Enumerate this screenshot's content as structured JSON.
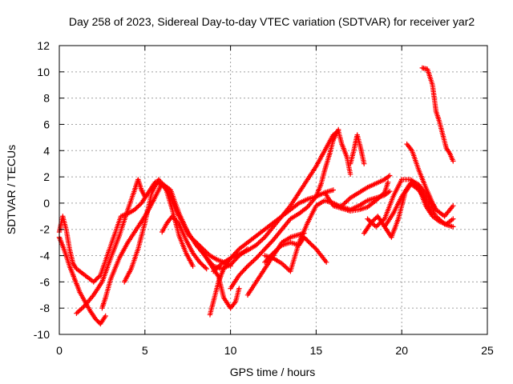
{
  "chart_data": {
    "type": "scatter",
    "title": "Day 258 of 2023, Sidereal Day-to-day VTEC variation (SDTVAR) for receiver yar2",
    "xlabel": "GPS time / hours",
    "ylabel": "SDTVAR / TECUs",
    "xlim": [
      0,
      25
    ],
    "ylim": [
      -10,
      12
    ],
    "xticks": [
      0,
      5,
      10,
      15,
      20,
      25
    ],
    "yticks": [
      -10,
      -8,
      -6,
      -4,
      -2,
      0,
      2,
      4,
      6,
      8,
      10,
      12
    ],
    "grid": true,
    "legend": "none",
    "marker": "+",
    "colors": {
      "series": "#ff0000",
      "grid": "#a0a0a0",
      "axis": "#000000"
    },
    "series": [
      {
        "name": "trace-1",
        "x": [
          0.0,
          0.2,
          0.4,
          0.6,
          0.8,
          1.0,
          1.3,
          1.6,
          2.0,
          2.4,
          2.8,
          3.2,
          3.6,
          4.0,
          4.4,
          4.8,
          5.2,
          5.6,
          6.0,
          6.4,
          6.8,
          7.2,
          7.6,
          8.0,
          8.4,
          8.8,
          9.2,
          9.6,
          10.0
        ],
        "y": [
          -2.2,
          -1.0,
          -2.0,
          -3.5,
          -4.6,
          -5.0,
          -5.3,
          -5.6,
          -6.0,
          -5.5,
          -4.0,
          -2.5,
          -1.0,
          -0.8,
          -0.5,
          0.0,
          0.8,
          1.6,
          1.4,
          0.8,
          -0.5,
          -1.5,
          -2.5,
          -3.0,
          -3.5,
          -4.0,
          -4.3,
          -4.5,
          -4.8
        ]
      },
      {
        "name": "trace-2",
        "x": [
          0.0,
          0.3,
          0.6,
          0.9,
          1.2,
          1.5,
          1.8,
          2.1,
          2.4,
          2.7
        ],
        "y": [
          -2.6,
          -3.6,
          -4.8,
          -5.8,
          -6.8,
          -7.5,
          -8.2,
          -8.8,
          -9.2,
          -8.6
        ]
      },
      {
        "name": "trace-3",
        "x": [
          1.0,
          1.5,
          2.0,
          2.5,
          3.0,
          3.5,
          4.0,
          4.4,
          4.6,
          4.8,
          5.0
        ],
        "y": [
          -8.4,
          -7.8,
          -7.0,
          -6.0,
          -4.2,
          -2.5,
          -0.5,
          1.0,
          1.8,
          1.0,
          0.5
        ]
      },
      {
        "name": "trace-4",
        "x": [
          2.5,
          2.7,
          3.0,
          3.5,
          4.0,
          4.5,
          5.0,
          5.5,
          6.0,
          6.5,
          7.0,
          7.5,
          8.0,
          8.5,
          9.0,
          9.5,
          10.0,
          10.5,
          11.0
        ],
        "y": [
          -8.0,
          -7.2,
          -5.8,
          -4.2,
          -3.0,
          -2.0,
          -1.0,
          0.2,
          1.5,
          1.0,
          -0.8,
          -2.2,
          -3.2,
          -4.0,
          -4.8,
          -5.0,
          -4.7,
          -4.0,
          -3.5
        ]
      },
      {
        "name": "trace-5",
        "x": [
          3.8,
          4.2,
          4.6,
          5.0,
          5.4,
          5.8,
          6.2,
          6.6,
          7.0,
          7.4,
          7.8
        ],
        "y": [
          -6.0,
          -5.0,
          -3.5,
          -1.5,
          0.8,
          1.8,
          1.2,
          -0.5,
          -2.5,
          -3.8,
          -4.8
        ]
      },
      {
        "name": "trace-6",
        "x": [
          6.0,
          6.3,
          6.6,
          7.0,
          7.4,
          7.8,
          8.2,
          8.6
        ],
        "y": [
          -2.2,
          -1.5,
          -1.0,
          -1.6,
          -2.8,
          -3.8,
          -4.5,
          -5.0
        ]
      },
      {
        "name": "trace-7",
        "x": [
          8.0,
          8.5,
          9.0,
          9.3,
          9.6,
          10.0,
          10.3,
          10.5
        ],
        "y": [
          -3.0,
          -4.0,
          -5.0,
          -5.6,
          -7.2,
          -8.0,
          -7.5,
          -6.5
        ]
      },
      {
        "name": "trace-8",
        "x": [
          8.8,
          9.0,
          9.3,
          9.6,
          10.0,
          10.5,
          11.0,
          11.5,
          12.0,
          12.5,
          13.0,
          13.5,
          14.0,
          14.5,
          15.0,
          15.5,
          16.0
        ],
        "y": [
          -8.5,
          -7.5,
          -6.0,
          -5.0,
          -4.2,
          -3.5,
          -3.0,
          -2.5,
          -2.0,
          -1.5,
          -1.0,
          -0.5,
          0.0,
          0.3,
          0.5,
          0.8,
          1.0
        ]
      },
      {
        "name": "trace-9",
        "x": [
          9.0,
          9.5,
          10.0,
          10.5,
          11.0,
          11.5,
          12.0,
          12.5,
          13.0,
          13.5,
          14.0,
          14.5,
          15.0,
          15.5,
          16.0,
          16.3,
          16.5,
          16.8,
          17.0
        ],
        "y": [
          -5.2,
          -4.6,
          -4.2,
          -3.9,
          -3.6,
          -3.2,
          -2.6,
          -1.8,
          -1.0,
          -0.2,
          0.8,
          1.8,
          2.8,
          4.0,
          5.2,
          5.5,
          4.5,
          3.5,
          2.2
        ]
      },
      {
        "name": "trace-10",
        "x": [
          10.0,
          10.5,
          11.0,
          11.5,
          12.0,
          12.5,
          13.0,
          13.5,
          14.0,
          14.5,
          15.0,
          15.3,
          15.5,
          15.8,
          16.0,
          16.3
        ],
        "y": [
          -6.5,
          -5.5,
          -4.8,
          -4.2,
          -3.5,
          -2.8,
          -2.0,
          -1.2,
          -0.8,
          -0.3,
          0.5,
          1.5,
          2.5,
          3.8,
          4.8,
          5.6
        ]
      },
      {
        "name": "trace-11",
        "x": [
          11.0,
          11.5,
          12.0,
          12.5,
          13.0,
          13.5,
          14.0,
          14.3
        ],
        "y": [
          -7.0,
          -6.0,
          -5.0,
          -4.0,
          -3.0,
          -2.6,
          -2.4,
          -2.3
        ]
      },
      {
        "name": "trace-12",
        "x": [
          12.0,
          12.5,
          13.0,
          13.5,
          14.0,
          14.3,
          14.6,
          15.0,
          15.3,
          15.6
        ],
        "y": [
          -4.5,
          -3.8,
          -3.2,
          -3.0,
          -3.2,
          -2.6,
          -3.0,
          -3.5,
          -4.0,
          -4.5
        ]
      },
      {
        "name": "trace-13",
        "x": [
          12.0,
          12.5,
          13.0,
          13.5,
          14.0,
          14.5,
          15.0,
          15.5,
          16.0,
          16.5,
          17.0,
          17.5,
          18.0,
          18.5,
          19.0,
          19.3
        ],
        "y": [
          -4.0,
          -4.2,
          -4.6,
          -5.2,
          -3.0,
          -1.5,
          -0.2,
          0.2,
          0.0,
          -0.3,
          -0.5,
          -0.2,
          0.2,
          0.4,
          0.6,
          0.9
        ]
      },
      {
        "name": "trace-14",
        "x": [
          15.5,
          16.0,
          16.5,
          17.0,
          17.5,
          18.0,
          18.5,
          19.0,
          19.2
        ],
        "y": [
          0.8,
          -0.2,
          -0.4,
          -0.6,
          -0.5,
          -0.3,
          0.2,
          0.8,
          1.6
        ]
      },
      {
        "name": "trace-15",
        "x": [
          17.0,
          17.2,
          17.4,
          17.6,
          17.8
        ],
        "y": [
          3.0,
          4.0,
          5.2,
          4.2,
          3.0
        ]
      },
      {
        "name": "trace-16",
        "x": [
          16.5,
          17.0,
          17.5,
          18.0,
          18.5,
          19.0,
          19.3
        ],
        "y": [
          -0.2,
          0.4,
          0.8,
          1.2,
          1.5,
          1.8,
          2.1
        ]
      },
      {
        "name": "trace-17",
        "x": [
          17.8,
          18.2,
          18.6,
          19.0,
          19.4,
          19.8,
          20.2,
          20.6,
          21.0,
          21.4,
          21.8,
          22.2,
          22.6,
          23.0
        ],
        "y": [
          -2.3,
          -1.5,
          -1.0,
          -1.8,
          -2.6,
          -1.2,
          0.8,
          1.6,
          1.2,
          -0.2,
          -1.0,
          -1.4,
          -1.6,
          -1.2
        ]
      },
      {
        "name": "trace-18",
        "x": [
          18.0,
          18.5,
          19.0,
          19.5,
          20.0,
          20.5,
          21.0,
          21.5,
          22.0,
          22.5,
          23.0
        ],
        "y": [
          -1.2,
          -1.8,
          -1.2,
          0.5,
          1.8,
          1.8,
          1.4,
          0.5,
          -0.5,
          -1.0,
          -0.2
        ]
      },
      {
        "name": "trace-19",
        "x": [
          19.0,
          19.5,
          20.0,
          20.5,
          21.0,
          21.5,
          22.0,
          22.5,
          23.0
        ],
        "y": [
          -1.8,
          -0.8,
          0.5,
          1.5,
          1.0,
          0.0,
          -1.0,
          -1.6,
          -1.8
        ]
      },
      {
        "name": "trace-20",
        "x": [
          20.3,
          20.6,
          21.0,
          21.4,
          21.8,
          22.0
        ],
        "y": [
          4.5,
          4.0,
          2.5,
          1.2,
          0.0,
          -0.5
        ]
      },
      {
        "name": "trace-21",
        "x": [
          21.2,
          21.5,
          21.8,
          22.0,
          22.2,
          22.4,
          22.6,
          22.8,
          23.0
        ],
        "y": [
          10.3,
          10.2,
          9.0,
          7.0,
          6.2,
          5.2,
          4.2,
          3.8,
          3.2
        ]
      }
    ]
  }
}
